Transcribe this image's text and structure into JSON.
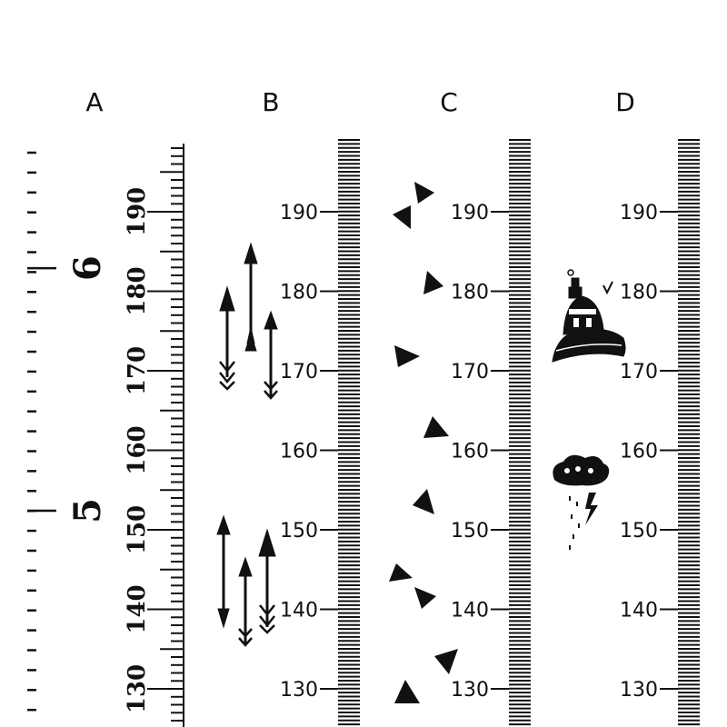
{
  "columns": [
    {
      "letter": "A",
      "style": "vertical-serif",
      "cm_labels": [
        "190",
        "180",
        "170",
        "160",
        "150",
        "140",
        "130"
      ],
      "feet_labels": [
        "6",
        "5"
      ],
      "decorations": []
    },
    {
      "letter": "B",
      "style": "arrows",
      "cm_labels": [
        "190",
        "180",
        "170",
        "160",
        "150",
        "140",
        "130"
      ],
      "decorations": [
        "arrow-icon"
      ]
    },
    {
      "letter": "C",
      "style": "triangles",
      "cm_labels": [
        "190",
        "180",
        "170",
        "160",
        "150",
        "140",
        "130"
      ],
      "decorations": [
        "triangle-icon",
        "bowtie-icon"
      ]
    },
    {
      "letter": "D",
      "style": "balloon-cloud",
      "cm_labels": [
        "190",
        "180",
        "170",
        "160",
        "150",
        "140",
        "130"
      ],
      "decorations": [
        "hot-air-balloon-icon",
        "rain-cloud-icon"
      ]
    }
  ],
  "ink_color": "#111111",
  "background_color": "#ffffff"
}
